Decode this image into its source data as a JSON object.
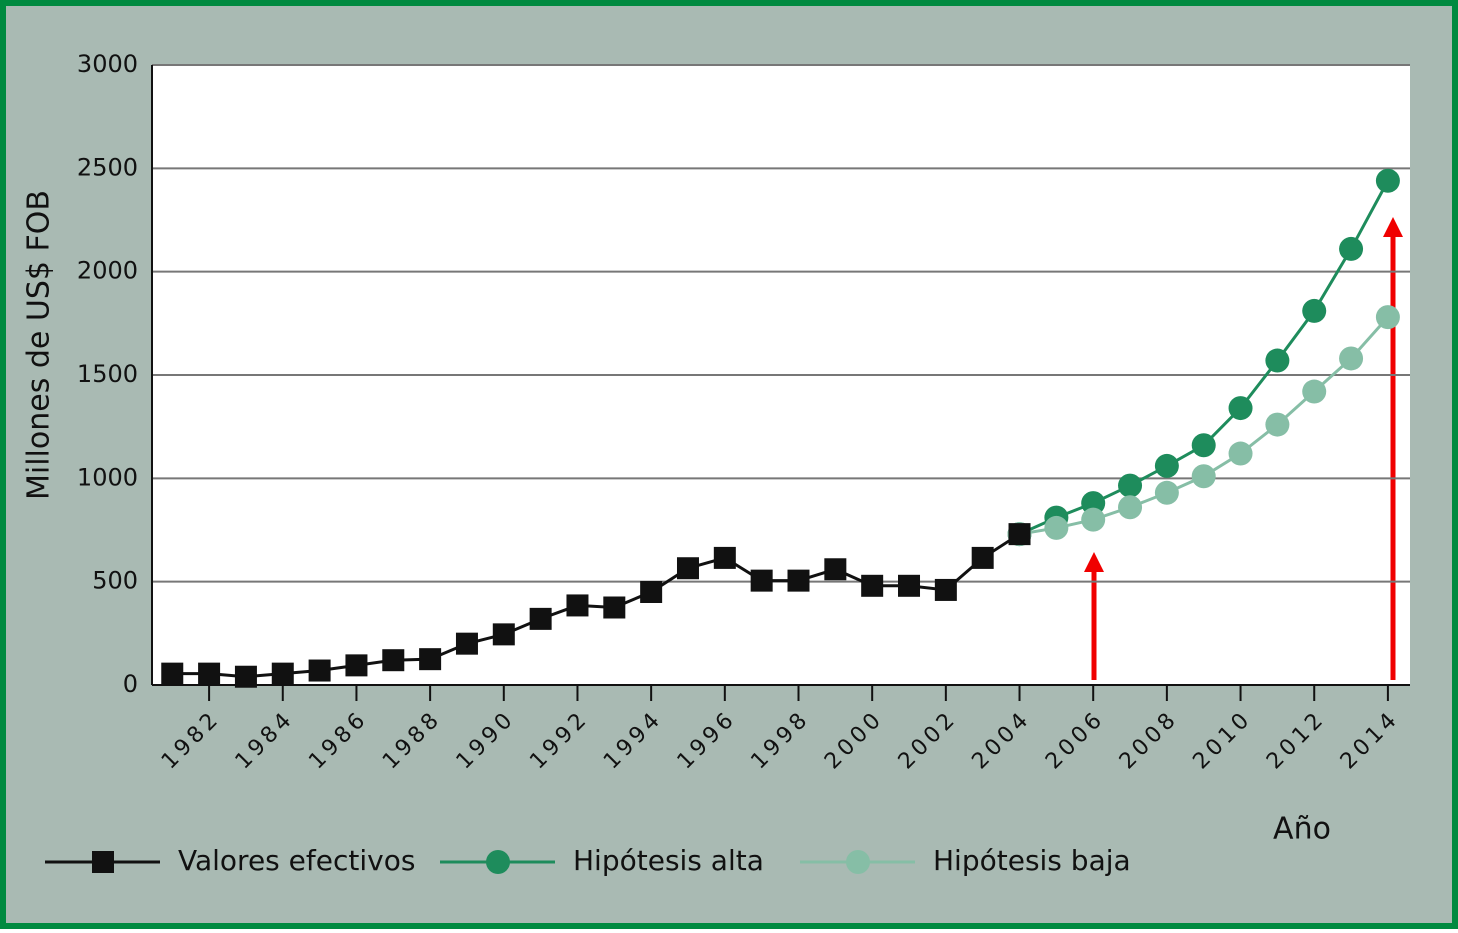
{
  "chart_data": {
    "type": "line",
    "y_label": "Millones de US$ FOB",
    "x_label": "Año",
    "xlim": [
      1980.45,
      2014.6
    ],
    "xticks": [
      1982,
      1984,
      1986,
      1988,
      1990,
      1992,
      1994,
      1996,
      1998,
      2000,
      2002,
      2004,
      2006,
      2008,
      2010,
      2012,
      2014
    ],
    "ylim": [
      0,
      3000
    ],
    "yticks": [
      0,
      500,
      1000,
      1500,
      2000,
      2500,
      3000
    ],
    "grid": true,
    "legend": "bottom",
    "series": [
      {
        "name": "Hipótesis alta",
        "color": "#1e8c5c",
        "marker": "circle",
        "x": [
          2004,
          2005,
          2006,
          2007,
          2008,
          2009,
          2010,
          2011,
          2012,
          2013,
          2014
        ],
        "values": [
          730,
          810,
          880,
          965,
          1060,
          1160,
          1340,
          1570,
          1810,
          2110,
          2440
        ]
      },
      {
        "name": "Hipótesis baja",
        "color": "#86bea6",
        "marker": "circle",
        "x": [
          2004,
          2005,
          2006,
          2007,
          2008,
          2009,
          2010,
          2011,
          2012,
          2013,
          2014
        ],
        "values": [
          730,
          760,
          800,
          860,
          930,
          1010,
          1120,
          1260,
          1420,
          1580,
          1780
        ]
      },
      {
        "name": "Valores efectivos",
        "color": "#111111",
        "marker": "square",
        "x": [
          1981,
          1982,
          1983,
          1984,
          1985,
          1986,
          1987,
          1988,
          1989,
          1990,
          1991,
          1992,
          1993,
          1994,
          1995,
          1996,
          1997,
          1998,
          1999,
          2000,
          2001,
          2002,
          2003,
          2004
        ],
        "values": [
          55,
          55,
          40,
          55,
          70,
          95,
          120,
          125,
          200,
          245,
          320,
          385,
          375,
          450,
          565,
          615,
          505,
          505,
          560,
          480,
          480,
          460,
          615,
          730
        ]
      }
    ],
    "legend_order": [
      2,
      0,
      1
    ]
  }
}
